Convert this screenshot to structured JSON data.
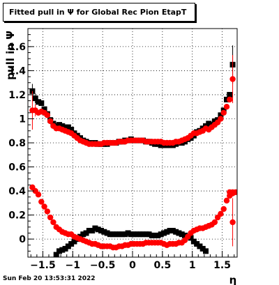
{
  "chart_data": {
    "type": "scatter",
    "title": "Fitted pull in  Ψ  for Global Rec Pion EtapT",
    "xlabel": "η",
    "ylabel": "pull in Ψ",
    "xlim": [
      -1.75,
      1.75
    ],
    "ylim": [
      -0.15,
      1.75
    ],
    "grid": true,
    "x_ticks": [
      -1.5,
      -1,
      -0.5,
      0,
      0.5,
      1,
      1.5
    ],
    "x_tick_labels": [
      "−1.5",
      "−1",
      "−0.5",
      "0",
      "0.5",
      "1",
      "1.5"
    ],
    "y_ticks": [
      0,
      0.2,
      0.4,
      0.6,
      0.8,
      1,
      1.2,
      1.4,
      1.6
    ],
    "y_tick_labels": [
      "0",
      "0.2",
      "0.4",
      "0.6",
      "0.8",
      "1",
      "1.2",
      "1.4",
      "1.6"
    ],
    "x": [
      -1.675,
      -1.625,
      -1.575,
      -1.525,
      -1.475,
      -1.425,
      -1.375,
      -1.325,
      -1.275,
      -1.225,
      -1.175,
      -1.125,
      -1.075,
      -1.025,
      -0.975,
      -0.925,
      -0.875,
      -0.825,
      -0.775,
      -0.725,
      -0.675,
      -0.625,
      -0.575,
      -0.525,
      -0.475,
      -0.425,
      -0.375,
      -0.325,
      -0.275,
      -0.225,
      -0.175,
      -0.125,
      -0.075,
      -0.025,
      0.025,
      0.075,
      0.125,
      0.175,
      0.225,
      0.275,
      0.325,
      0.375,
      0.425,
      0.475,
      0.525,
      0.575,
      0.625,
      0.675,
      0.725,
      0.775,
      0.825,
      0.875,
      0.925,
      0.975,
      1.025,
      1.075,
      1.125,
      1.175,
      1.225,
      1.275,
      1.325,
      1.375,
      1.425,
      1.475,
      1.525,
      1.575,
      1.625,
      1.675
    ],
    "series": [
      {
        "marker": "square",
        "color": "#000000",
        "sigma": {
          "values": [
            1.23,
            1.17,
            1.14,
            1.13,
            1.08,
            1.04,
            0.99,
            0.96,
            0.94,
            0.95,
            0.94,
            0.93,
            0.93,
            0.91,
            0.88,
            0.86,
            0.84,
            0.82,
            0.81,
            0.8,
            0.8,
            0.8,
            0.79,
            0.79,
            0.79,
            0.79,
            0.8,
            0.8,
            0.8,
            0.81,
            0.81,
            0.82,
            0.82,
            0.83,
            0.82,
            0.82,
            0.82,
            0.82,
            0.81,
            0.81,
            0.8,
            0.79,
            0.79,
            0.78,
            0.78,
            0.78,
            0.78,
            0.78,
            0.79,
            0.8,
            0.8,
            0.81,
            0.83,
            0.84,
            0.86,
            0.89,
            0.9,
            0.92,
            0.94,
            0.96,
            0.95,
            0.98,
            0.99,
            1.03,
            1.07,
            1.16,
            1.2,
            1.45
          ],
          "errors": [
            0.06,
            0.04,
            0,
            0,
            0,
            0,
            0,
            0,
            0,
            0,
            0,
            0,
            0,
            0,
            0,
            0,
            0,
            0,
            0,
            0,
            0,
            0,
            0,
            0,
            0,
            0,
            0,
            0,
            0,
            0,
            0,
            0,
            0,
            0,
            0,
            0,
            0,
            0,
            0,
            0,
            0,
            0,
            0,
            0,
            0,
            0,
            0,
            0,
            0,
            0,
            0,
            0,
            0,
            0,
            0,
            0,
            0,
            0,
            0,
            0,
            0,
            0,
            0,
            0,
            0,
            0,
            0,
            0.16
          ]
        },
        "mean": {
          "x": [
            -1.325,
            -1.275,
            -1.225,
            -1.175,
            -1.125,
            -1.075,
            -1.025,
            -0.975,
            -0.925,
            -0.875,
            -0.825,
            -0.775,
            -0.725,
            -0.675,
            -0.625,
            -0.575,
            -0.525,
            -0.475,
            -0.425,
            -0.375,
            -0.325,
            -0.275,
            -0.225,
            -0.175,
            -0.125,
            -0.075,
            -0.025,
            0.025,
            0.075,
            0.125,
            0.175,
            0.225,
            0.275,
            0.325,
            0.375,
            0.425,
            0.475,
            0.525,
            0.575,
            0.625,
            0.675,
            0.725,
            0.775,
            0.825,
            0.875,
            0.925,
            0.975,
            1.025,
            1.075,
            1.125,
            1.175,
            1.225
          ],
          "values": [
            -0.17,
            -0.13,
            -0.1,
            -0.09,
            -0.08,
            -0.06,
            -0.04,
            -0.02,
            0,
            0.02,
            0.04,
            0.05,
            0.07,
            0.07,
            0.09,
            0.08,
            0.07,
            0.06,
            0.05,
            0.04,
            0.04,
            0.04,
            0.04,
            0.04,
            0.04,
            0.05,
            0.04,
            0.04,
            0.04,
            0.04,
            0.04,
            0.04,
            0.04,
            0.03,
            0.03,
            0.03,
            0.04,
            0.05,
            0.06,
            0.07,
            0.07,
            0.06,
            0.05,
            0.04,
            0.03,
            0.02,
            0.01,
            -0.02,
            -0.04,
            -0.06,
            -0.08,
            -0.1
          ]
        }
      },
      {
        "marker": "circle",
        "color": "#ff0000",
        "sigma": {
          "values": [
            1.07,
            1.07,
            1.05,
            1.06,
            1.05,
            1.03,
            0.98,
            0.94,
            0.92,
            0.92,
            0.91,
            0.9,
            0.89,
            0.88,
            0.86,
            0.84,
            0.82,
            0.81,
            0.8,
            0.79,
            0.79,
            0.79,
            0.79,
            0.79,
            0.8,
            0.8,
            0.8,
            0.8,
            0.8,
            0.81,
            0.81,
            0.81,
            0.82,
            0.82,
            0.82,
            0.82,
            0.82,
            0.82,
            0.81,
            0.81,
            0.81,
            0.81,
            0.81,
            0.81,
            0.8,
            0.8,
            0.8,
            0.8,
            0.81,
            0.81,
            0.82,
            0.83,
            0.84,
            0.86,
            0.88,
            0.88,
            0.89,
            0.9,
            0.92,
            0.91,
            0.93,
            0.95,
            0.97,
            1.0,
            1.05,
            1.1,
            1.16,
            1.33
          ],
          "errors": [
            0.16,
            0.05,
            0,
            0,
            0,
            0,
            0,
            0,
            0,
            0,
            0,
            0,
            0,
            0,
            0,
            0,
            0,
            0,
            0,
            0,
            0,
            0,
            0,
            0,
            0,
            0,
            0,
            0,
            0,
            0,
            0,
            0,
            0,
            0,
            0,
            0,
            0,
            0,
            0,
            0,
            0,
            0,
            0,
            0,
            0,
            0,
            0,
            0,
            0,
            0,
            0,
            0,
            0,
            0,
            0,
            0,
            0,
            0,
            0,
            0,
            0,
            0,
            0,
            0,
            0,
            0,
            0,
            0.2
          ]
        },
        "mean": {
          "values": [
            0.43,
            0.4,
            0.37,
            0.31,
            0.27,
            0.23,
            0.18,
            0.14,
            0.1,
            0.08,
            0.06,
            0.05,
            0.04,
            0.04,
            0.02,
            0.01,
            0.0,
            -0.01,
            -0.02,
            -0.03,
            -0.04,
            -0.04,
            -0.05,
            -0.06,
            -0.06,
            -0.06,
            -0.06,
            -0.07,
            -0.07,
            -0.06,
            -0.06,
            -0.05,
            -0.05,
            -0.04,
            -0.04,
            -0.04,
            -0.04,
            -0.04,
            -0.03,
            -0.03,
            -0.03,
            -0.03,
            -0.03,
            -0.03,
            -0.04,
            -0.05,
            -0.04,
            -0.04,
            -0.04,
            -0.03,
            -0.03,
            -0.01,
            0.02,
            0.05,
            0.07,
            0.08,
            0.09,
            0.09,
            0.1,
            0.11,
            0.12,
            0.14,
            0.18,
            0.21,
            0.25,
            0.32,
            0.36,
            0.38,
            0.39,
            0.39,
            0.39,
            0.14
          ],
          "x": [
            -1.675,
            -1.625,
            -1.575,
            -1.525,
            -1.475,
            -1.425,
            -1.375,
            -1.325,
            -1.275,
            -1.225,
            -1.175,
            -1.125,
            -1.075,
            -1.025,
            -0.975,
            -0.925,
            -0.875,
            -0.825,
            -0.775,
            -0.725,
            -0.675,
            -0.625,
            -0.575,
            -0.525,
            -0.475,
            -0.425,
            -0.375,
            -0.325,
            -0.275,
            -0.225,
            -0.175,
            -0.125,
            -0.075,
            -0.025,
            0.025,
            0.075,
            0.125,
            0.175,
            0.225,
            0.275,
            0.325,
            0.375,
            0.425,
            0.475,
            0.525,
            0.575,
            0.625,
            0.675,
            0.725,
            0.775,
            0.825,
            0.875,
            0.925,
            0.975,
            1.025,
            1.075,
            1.125,
            1.175,
            1.225,
            1.275,
            1.325,
            1.375,
            1.425,
            1.475,
            1.525,
            1.575,
            1.625,
            1.675,
            1.725,
            1.675,
            1.625,
            1.675
          ],
          "errors_last": 0.2
        }
      }
    ]
  },
  "datestamp": "Sun Feb 20 13:53:31 2022"
}
